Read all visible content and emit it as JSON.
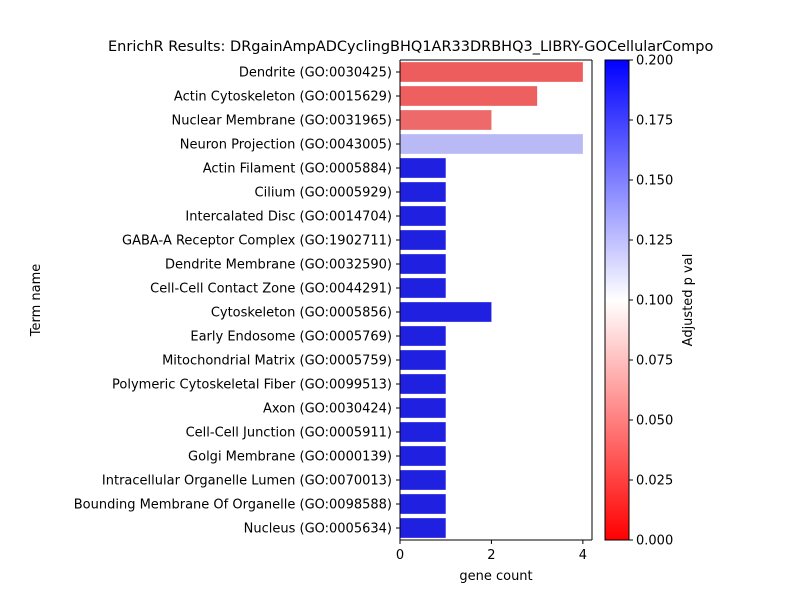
{
  "chart_data": {
    "type": "bar",
    "orientation": "horizontal",
    "title": "EnrichR Results: DRgainAmpADCyclingBHQ1AR33DRBHQ3_LIBRY-GOCellularCompo",
    "xlabel": "gene count",
    "ylabel": "Term name",
    "xlim": [
      0,
      4.2
    ],
    "xticks": [
      0,
      2,
      4
    ],
    "grid": false,
    "categories": [
      "Dendrite (GO:0030425)",
      "Actin Cytoskeleton (GO:0015629)",
      "Nuclear Membrane (GO:0031965)",
      "Neuron Projection (GO:0043005)",
      "Actin Filament (GO:0005884)",
      "Cilium (GO:0005929)",
      "Intercalated Disc (GO:0014704)",
      "GABA-A Receptor Complex (GO:1902711)",
      "Dendrite Membrane (GO:0032590)",
      "Cell-Cell Contact Zone (GO:0044291)",
      "Cytoskeleton (GO:0005856)",
      "Early Endosome (GO:0005769)",
      "Mitochondrial Matrix (GO:0005759)",
      "Polymeric Cytoskeletal Fiber (GO:0099513)",
      "Axon (GO:0030424)",
      "Cell-Cell Junction (GO:0005911)",
      "Golgi Membrane (GO:0000139)",
      "Intracellular Organelle Lumen (GO:0070013)",
      "Bounding Membrane Of Organelle (GO:0098588)",
      "Nucleus (GO:0005634)"
    ],
    "values": [
      4,
      3,
      2,
      4,
      1,
      1,
      1,
      1,
      1,
      1,
      2,
      1,
      1,
      1,
      1,
      1,
      1,
      1,
      1,
      1
    ],
    "bar_colors": [
      "#ee5d5d",
      "#ee5f5f",
      "#ee6969",
      "#b9b9f5",
      "#2020e0",
      "#2020e0",
      "#2020e0",
      "#2020e0",
      "#2020e0",
      "#2020e0",
      "#2020e0",
      "#2020e0",
      "#2020e0",
      "#2020e0",
      "#2020e0",
      "#2020e0",
      "#2020e0",
      "#2020e0",
      "#2020e0",
      "#2020e0"
    ],
    "colorbar": {
      "label": "Adjusted p val",
      "range": [
        0,
        0.2
      ],
      "ticks": [
        "0.000",
        "0.025",
        "0.050",
        "0.075",
        "0.100",
        "0.125",
        "0.150",
        "0.175",
        "0.200"
      ],
      "colormap": [
        "#ff0000",
        "#ffffff",
        "#0000ff"
      ]
    }
  }
}
